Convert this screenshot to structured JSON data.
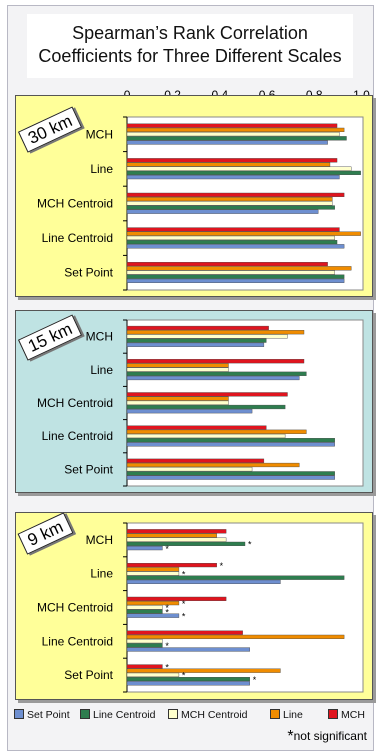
{
  "chart_data": {
    "type": "bar",
    "orientation": "horizontal",
    "title": "Spearman’s Rank Correlation Coefficients for Three Different Scales",
    "title_lines": [
      "Spearman’s Rank Correlation",
      "Coefficients for Three Different Scales"
    ],
    "x_ticks": [
      "0",
      "0.2",
      "0.4",
      "0.6",
      "0.8",
      "1.0"
    ],
    "xlim": [
      0,
      1.0
    ],
    "categories": [
      "MCH",
      "Line",
      "MCH Centroid",
      "Line Centroid",
      "Set Point"
    ],
    "series_order_in_group": [
      "MCH",
      "Line",
      "MCH Centroid",
      "Line Centroid",
      "Set Point"
    ],
    "legend": [
      {
        "name": "Set Point",
        "color": "#6e8fd0"
      },
      {
        "name": "Line Centroid",
        "color": "#2e7d4f"
      },
      {
        "name": "MCH Centroid",
        "color": "#ffffcc"
      },
      {
        "name": "Line",
        "color": "#f08c00"
      },
      {
        "name": "MCH",
        "color": "#e0141e"
      }
    ],
    "panels": [
      {
        "label": "30 km",
        "background": "#ffff99",
        "groups": [
          {
            "category": "MCH",
            "values": {
              "MCH": 0.89,
              "Line": 0.92,
              "MCH Centroid": 0.9,
              "Line Centroid": 0.93,
              "Set Point": 0.85
            },
            "not_significant": []
          },
          {
            "category": "Line",
            "values": {
              "MCH": 0.89,
              "Line": 0.86,
              "MCH Centroid": 0.95,
              "Line Centroid": 0.99,
              "Set Point": 0.9
            },
            "not_significant": []
          },
          {
            "category": "MCH Centroid",
            "values": {
              "MCH": 0.92,
              "Line": 0.87,
              "MCH Centroid": 0.87,
              "Line Centroid": 0.88,
              "Set Point": 0.81
            },
            "not_significant": []
          },
          {
            "category": "Line Centroid",
            "values": {
              "MCH": 0.9,
              "Line": 0.99,
              "MCH Centroid": 0.88,
              "Line Centroid": 0.89,
              "Set Point": 0.92
            },
            "not_significant": []
          },
          {
            "category": "Set Point",
            "values": {
              "MCH": 0.85,
              "Line": 0.95,
              "MCH Centroid": 0.88,
              "Line Centroid": 0.92,
              "Set Point": 0.92
            },
            "not_significant": []
          }
        ]
      },
      {
        "label": "15 km",
        "background": "#bfe3e3",
        "groups": [
          {
            "category": "MCH",
            "values": {
              "MCH": 0.6,
              "Line": 0.75,
              "MCH Centroid": 0.68,
              "Line Centroid": 0.59,
              "Set Point": 0.58
            },
            "not_significant": []
          },
          {
            "category": "Line",
            "values": {
              "MCH": 0.75,
              "Line": 0.43,
              "MCH Centroid": 0.43,
              "Line Centroid": 0.76,
              "Set Point": 0.73
            },
            "not_significant": []
          },
          {
            "category": "MCH Centroid",
            "values": {
              "MCH": 0.68,
              "Line": 0.43,
              "MCH Centroid": 0.43,
              "Line Centroid": 0.67,
              "Set Point": 0.53
            },
            "not_significant": []
          },
          {
            "category": "Line Centroid",
            "values": {
              "MCH": 0.59,
              "Line": 0.76,
              "MCH Centroid": 0.67,
              "Line Centroid": 0.88,
              "Set Point": 0.88
            },
            "not_significant": []
          },
          {
            "category": "Set Point",
            "values": {
              "MCH": 0.58,
              "Line": 0.73,
              "MCH Centroid": 0.53,
              "Line Centroid": 0.88,
              "Set Point": 0.88
            },
            "not_significant": []
          }
        ]
      },
      {
        "label": "9 km",
        "background": "#ffff99",
        "groups": [
          {
            "category": "MCH",
            "values": {
              "MCH": 0.42,
              "Line": 0.38,
              "MCH Centroid": 0.42,
              "Line Centroid": 0.5,
              "Set Point": 0.15
            },
            "not_significant": [
              "Line Centroid",
              "Set Point"
            ]
          },
          {
            "category": "Line",
            "values": {
              "MCH": 0.38,
              "Line": 0.22,
              "MCH Centroid": 0.22,
              "Line Centroid": 0.92,
              "Set Point": 0.65
            },
            "not_significant": [
              "MCH",
              "MCH Centroid"
            ]
          },
          {
            "category": "MCH Centroid",
            "values": {
              "MCH": 0.42,
              "Line": 0.22,
              "MCH Centroid": 0.15,
              "Line Centroid": 0.15,
              "Set Point": 0.22
            },
            "not_significant": [
              "Line",
              "MCH Centroid",
              "Line Centroid",
              "Set Point"
            ]
          },
          {
            "category": "Line Centroid",
            "values": {
              "MCH": 0.49,
              "Line": 0.92,
              "MCH Centroid": 0.15,
              "Line Centroid": 0.15,
              "Set Point": 0.52
            },
            "not_significant": [
              "Line Centroid"
            ]
          },
          {
            "category": "Set Point",
            "values": {
              "MCH": 0.15,
              "Line": 0.65,
              "MCH Centroid": 0.22,
              "Line Centroid": 0.52,
              "Set Point": 0.52
            },
            "not_significant": [
              "MCH",
              "MCH Centroid",
              "Line Centroid"
            ]
          }
        ]
      }
    ],
    "footnote": "not significant",
    "footnote_symbol": "*"
  }
}
